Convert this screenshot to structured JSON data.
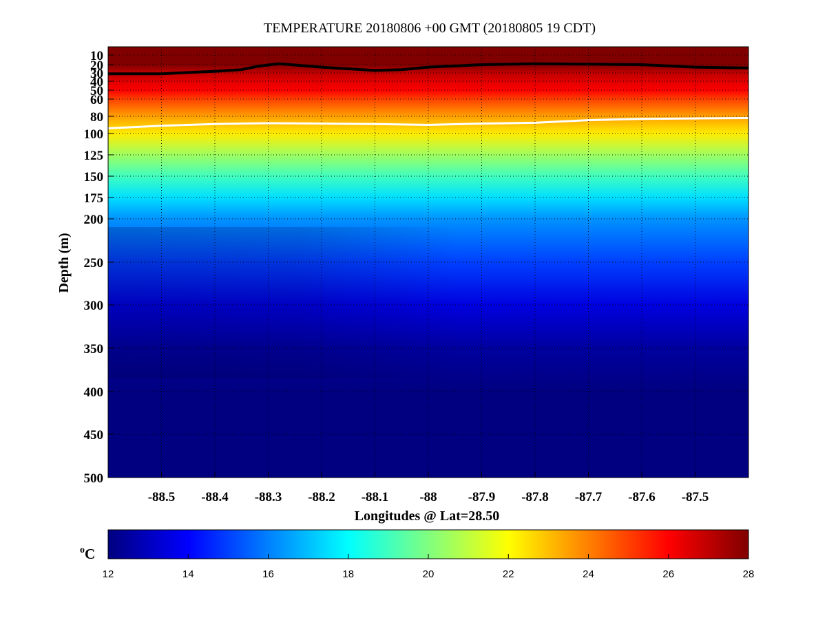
{
  "chart_data": {
    "type": "heatmap",
    "title": "TEMPERATURE 20180806 +00 GMT (20180805 19 CDT)",
    "xlabel": "Longitudes @ Lat=28.50",
    "ylabel": "Depth (m)",
    "xlim": [
      -88.6,
      -87.4
    ],
    "x_ticks": [
      -88.5,
      -88.4,
      -88.3,
      -88.2,
      -88.1,
      -88,
      -87.9,
      -87.8,
      -87.7,
      -87.6,
      -87.5
    ],
    "x_tick_labels": [
      "-88.5",
      "-88.4",
      "-88.3",
      "-88.2",
      "-88.1",
      "-88",
      "-87.9",
      "-87.8",
      "-87.7",
      "-87.6",
      "-87.5"
    ],
    "ylim": [
      5,
      500
    ],
    "y_scale": "stretched (finer spacing near surface)",
    "y_ticks": [
      10,
      20,
      30,
      40,
      50,
      60,
      80,
      100,
      125,
      150,
      175,
      200,
      250,
      300,
      350,
      400,
      450,
      500
    ],
    "y_tick_labels": [
      "10",
      "20",
      "30",
      "40",
      "50",
      "60",
      "80",
      "100",
      "125",
      "150",
      "175",
      "200",
      "250",
      "300",
      "350",
      "400",
      "450",
      "500"
    ],
    "y_inverted": true,
    "grid": true,
    "colormap": "jet",
    "colorbar": {
      "label": "oC",
      "range": [
        12,
        28
      ],
      "ticks": [
        "12",
        "14",
        "16",
        "18",
        "20",
        "22",
        "24",
        "26",
        "28"
      ],
      "placement": "bottom"
    },
    "temperature_profile": {
      "depth": [
        5,
        20,
        30,
        40,
        50,
        60,
        80,
        100,
        125,
        150,
        175,
        200,
        250,
        300,
        350,
        400,
        450,
        500
      ],
      "temp": [
        28.5,
        28,
        27,
        26.5,
        26,
        25,
        23.5,
        22.3,
        20.5,
        19,
        17.5,
        16.3,
        15,
        13.5,
        12.5,
        12,
        12,
        12
      ]
    },
    "contour_lines": [
      {
        "color": "black",
        "lon": [
          -88.6,
          -88.5,
          -88.4,
          -88.35,
          -88.32,
          -88.28,
          -88.2,
          -88.1,
          -88.05,
          -88.0,
          -87.9,
          -87.8,
          -87.7,
          -87.6,
          -87.5,
          -87.4
        ],
        "depth": [
          31,
          31,
          28,
          26,
          22,
          19,
          23,
          27,
          26,
          23,
          20,
          19,
          19.5,
          20,
          23,
          24
        ]
      },
      {
        "color": "white",
        "lon": [
          -88.6,
          -88.5,
          -88.4,
          -88.3,
          -88.2,
          -88.1,
          -88.0,
          -87.9,
          -87.8,
          -87.7,
          -87.6,
          -87.5,
          -87.4
        ],
        "depth": [
          94,
          91,
          89,
          88,
          88.5,
          89,
          90,
          88.5,
          87.5,
          84.5,
          83,
          82.5,
          82
        ]
      }
    ]
  }
}
